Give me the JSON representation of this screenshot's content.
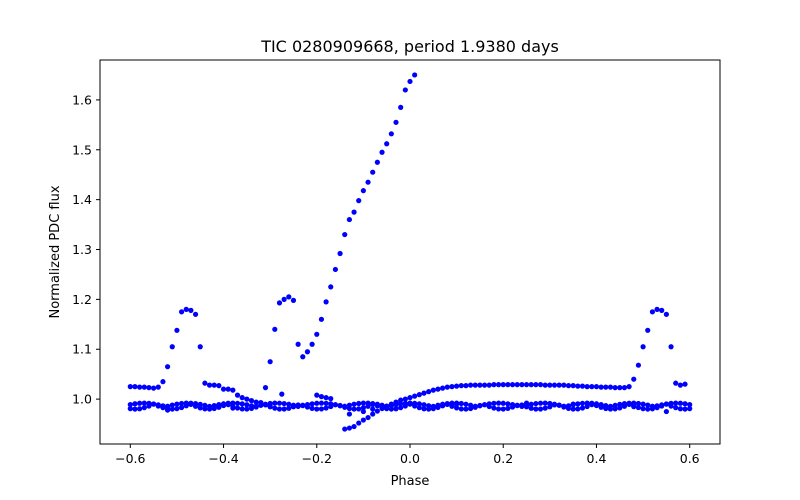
{
  "chart_data": {
    "type": "scatter",
    "title": "TIC 0280909668, period 1.9380 days",
    "xlabel": "Phase",
    "ylabel": "Normalized PDC flux",
    "xlim": [
      -0.665,
      0.665
    ],
    "ylim": [
      0.91,
      1.68
    ],
    "xticks": [
      -0.6,
      -0.4,
      -0.2,
      0.0,
      0.2,
      0.4,
      0.6
    ],
    "xtick_labels": [
      "−0.6",
      "−0.4",
      "−0.2",
      "0.0",
      "0.2",
      "0.4",
      "0.6"
    ],
    "yticks": [
      1.0,
      1.1,
      1.2,
      1.3,
      1.4,
      1.5,
      1.6
    ],
    "ytick_labels": [
      "1.0",
      "1.1",
      "1.2",
      "1.3",
      "1.4",
      "1.5",
      "1.6"
    ],
    "grid": false,
    "marker_color": "#0000ff",
    "series": [
      {
        "name": "flux",
        "points": [
          [
            -0.6,
            1.025
          ],
          [
            -0.59,
            1.025
          ],
          [
            -0.58,
            1.024
          ],
          [
            -0.57,
            1.024
          ],
          [
            -0.56,
            1.023
          ],
          [
            -0.55,
            1.022
          ],
          [
            -0.54,
            1.024
          ],
          [
            -0.53,
            1.035
          ],
          [
            -0.52,
            1.065
          ],
          [
            -0.51,
            1.105
          ],
          [
            -0.5,
            1.138
          ],
          [
            -0.49,
            1.175
          ],
          [
            -0.48,
            1.18
          ],
          [
            -0.47,
            1.178
          ],
          [
            -0.46,
            1.17
          ],
          [
            -0.45,
            1.105
          ],
          [
            -0.44,
            1.032
          ],
          [
            -0.43,
            1.028
          ],
          [
            -0.42,
            1.028
          ],
          [
            -0.41,
            1.027
          ],
          [
            -0.4,
            1.02
          ],
          [
            -0.39,
            1.02
          ],
          [
            -0.38,
            1.018
          ],
          [
            -0.37,
            1.008
          ],
          [
            -0.36,
            1.003
          ],
          [
            -0.35,
            1.0
          ],
          [
            -0.34,
            0.997
          ],
          [
            -0.33,
            0.994
          ],
          [
            -0.32,
            0.993
          ],
          [
            -0.31,
            1.023
          ],
          [
            -0.3,
            1.075
          ],
          [
            -0.29,
            1.14
          ],
          [
            -0.28,
            1.193
          ],
          [
            -0.27,
            1.2
          ],
          [
            -0.26,
            1.205
          ],
          [
            -0.25,
            1.198
          ],
          [
            -0.24,
            1.11
          ],
          [
            -0.23,
            1.085
          ],
          [
            -0.22,
            1.095
          ],
          [
            -0.21,
            1.11
          ],
          [
            -0.2,
            1.13
          ],
          [
            -0.19,
            1.16
          ],
          [
            -0.18,
            1.195
          ],
          [
            -0.17,
            1.225
          ],
          [
            -0.16,
            1.26
          ],
          [
            -0.15,
            1.292
          ],
          [
            -0.14,
            1.33
          ],
          [
            -0.13,
            1.36
          ],
          [
            -0.12,
            1.375
          ],
          [
            -0.11,
            1.398
          ],
          [
            -0.1,
            1.418
          ],
          [
            -0.09,
            1.435
          ],
          [
            -0.08,
            1.455
          ],
          [
            -0.07,
            1.475
          ],
          [
            -0.06,
            1.495
          ],
          [
            -0.05,
            1.512
          ],
          [
            -0.04,
            1.532
          ],
          [
            -0.03,
            1.555
          ],
          [
            -0.02,
            1.585
          ],
          [
            -0.01,
            1.62
          ],
          [
            0.0,
            1.637
          ],
          [
            0.01,
            1.65
          ],
          [
            -0.275,
            1.01
          ],
          [
            -0.2,
            1.008
          ],
          [
            -0.19,
            1.005
          ],
          [
            -0.18,
            1.003
          ],
          [
            -0.17,
            1.001
          ],
          [
            -0.14,
            0.94
          ],
          [
            -0.13,
            0.942
          ],
          [
            -0.12,
            0.945
          ],
          [
            -0.11,
            0.952
          ],
          [
            -0.1,
            0.958
          ],
          [
            -0.09,
            0.963
          ],
          [
            -0.08,
            0.97
          ],
          [
            -0.07,
            0.976
          ],
          [
            -0.06,
            0.981
          ],
          [
            -0.05,
            0.986
          ],
          [
            -0.04,
            0.99
          ],
          [
            -0.03,
            0.994
          ],
          [
            -0.02,
            0.998
          ],
          [
            -0.01,
            1.0
          ],
          [
            0.0,
            1.003
          ],
          [
            0.01,
            1.006
          ],
          [
            0.02,
            1.009
          ],
          [
            0.03,
            1.012
          ],
          [
            0.04,
            1.015
          ],
          [
            0.05,
            1.018
          ],
          [
            0.06,
            1.02
          ],
          [
            0.07,
            1.022
          ],
          [
            0.08,
            1.024
          ],
          [
            0.09,
            1.025
          ],
          [
            0.1,
            1.026
          ],
          [
            0.11,
            1.027
          ],
          [
            0.12,
            1.027
          ],
          [
            0.13,
            1.028
          ],
          [
            0.14,
            1.028
          ],
          [
            0.15,
            1.028
          ],
          [
            0.16,
            1.028
          ],
          [
            0.17,
            1.028
          ],
          [
            0.18,
            1.029
          ],
          [
            0.19,
            1.029
          ],
          [
            0.2,
            1.029
          ],
          [
            0.21,
            1.029
          ],
          [
            0.22,
            1.029
          ],
          [
            0.23,
            1.029
          ],
          [
            0.24,
            1.029
          ],
          [
            0.25,
            1.029
          ],
          [
            0.26,
            1.029
          ],
          [
            0.27,
            1.029
          ],
          [
            0.28,
            1.029
          ],
          [
            0.29,
            1.028
          ],
          [
            0.3,
            1.028
          ],
          [
            0.31,
            1.028
          ],
          [
            0.32,
            1.028
          ],
          [
            0.33,
            1.028
          ],
          [
            0.34,
            1.027
          ],
          [
            0.35,
            1.027
          ],
          [
            0.36,
            1.026
          ],
          [
            0.37,
            1.026
          ],
          [
            0.38,
            1.025
          ],
          [
            0.39,
            1.025
          ],
          [
            0.4,
            1.025
          ],
          [
            0.41,
            1.024
          ],
          [
            0.42,
            1.024
          ],
          [
            0.43,
            1.024
          ],
          [
            0.44,
            1.023
          ],
          [
            0.45,
            1.023
          ],
          [
            0.46,
            1.023
          ],
          [
            0.47,
            1.025
          ],
          [
            0.48,
            1.04
          ],
          [
            0.49,
            1.068
          ],
          [
            0.5,
            1.105
          ],
          [
            0.51,
            1.138
          ],
          [
            0.52,
            1.175
          ],
          [
            0.53,
            1.18
          ],
          [
            0.54,
            1.178
          ],
          [
            0.55,
            1.17
          ],
          [
            0.56,
            1.105
          ],
          [
            0.57,
            1.032
          ],
          [
            0.58,
            1.028
          ],
          [
            0.59,
            1.03
          ],
          [
            -0.13,
            0.97
          ],
          [
            -0.1,
            0.975
          ],
          [
            -0.08,
            0.98
          ],
          [
            0.55,
            0.975
          ],
          [
            0.48,
            0.985
          ],
          [
            0.35,
            0.99
          ],
          [
            -0.52,
            0.978
          ],
          [
            -0.38,
            0.982
          ],
          [
            -0.3,
            0.986
          ],
          [
            0.1,
            0.99
          ],
          [
            0.25,
            0.992
          ]
        ]
      }
    ]
  }
}
